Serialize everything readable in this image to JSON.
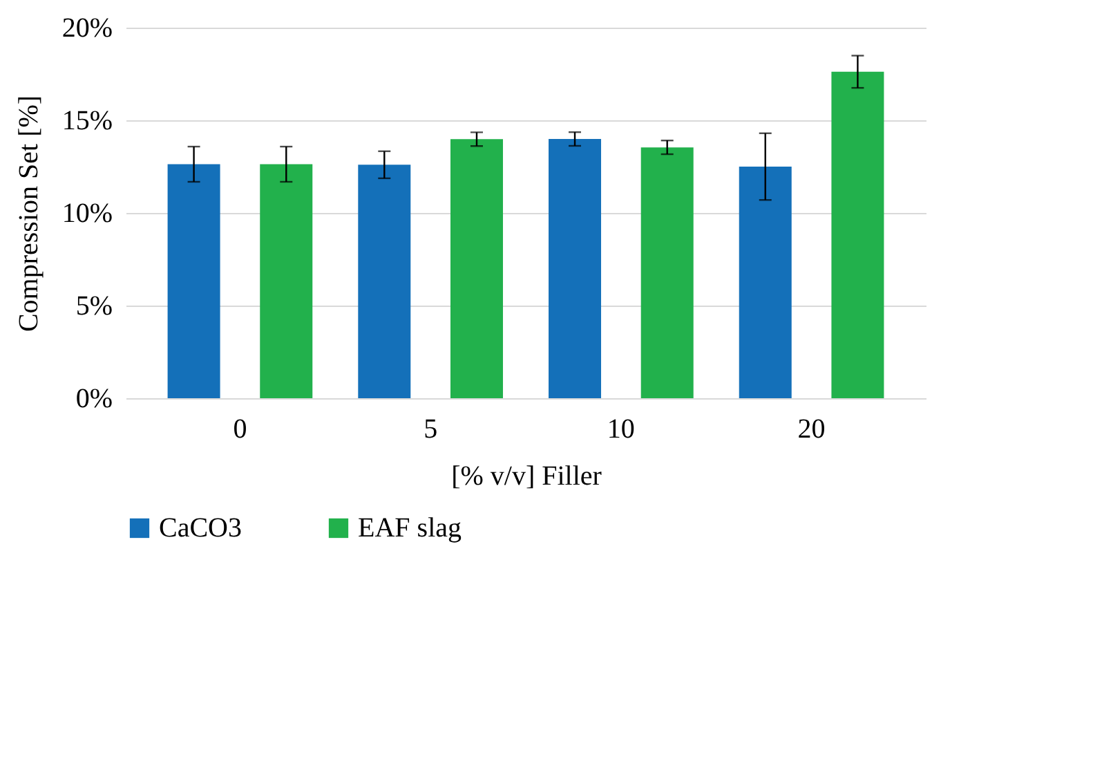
{
  "chart_data": {
    "type": "bar",
    "xlabel": "[% v/v] Filler",
    "ylabel": "Compression Set [%]",
    "categories": [
      "0",
      "5",
      "10",
      "20"
    ],
    "series": [
      {
        "name": "CaCO3",
        "color": "#1470b9",
        "values": [
          12.63,
          12.6,
          13.99,
          12.5
        ],
        "errors": [
          0.95,
          0.73,
          0.37,
          1.8
        ]
      },
      {
        "name": "EAF slag",
        "color": "#22b14c",
        "values": [
          12.63,
          13.98,
          13.54,
          17.62
        ],
        "errors": [
          0.95,
          0.37,
          0.37,
          0.87
        ]
      }
    ],
    "ylim": [
      0,
      20
    ],
    "yticks": [
      {
        "value": 0,
        "label": "0%"
      },
      {
        "value": 5,
        "label": "5%"
      },
      {
        "value": 10,
        "label": "10%"
      },
      {
        "value": 15,
        "label": "15%"
      },
      {
        "value": 20,
        "label": "20%"
      }
    ],
    "grid": "y",
    "legend": "bottom"
  }
}
